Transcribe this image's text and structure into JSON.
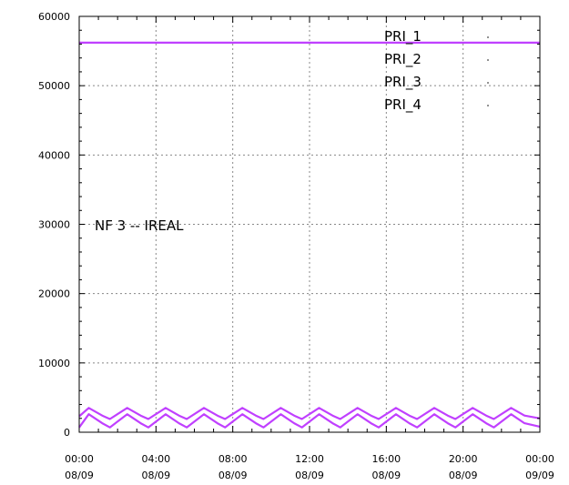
{
  "chart_data": {
    "type": "line",
    "title": "",
    "xlabel": "",
    "ylabel": "",
    "ylim": [
      0,
      60000
    ],
    "yticks": [
      0,
      10000,
      20000,
      30000,
      40000,
      50000,
      60000
    ],
    "ytick_labels": [
      "0",
      "10000",
      "20000",
      "30000",
      "40000",
      "50000",
      "60000"
    ],
    "xlim_hours": [
      0,
      24
    ],
    "xticks_hours": [
      0,
      4,
      8,
      12,
      16,
      20,
      24
    ],
    "xtick_labels": [
      {
        "time": "00:00",
        "date": "08/09"
      },
      {
        "time": "04:00",
        "date": "08/09"
      },
      {
        "time": "08:00",
        "date": "08/09"
      },
      {
        "time": "12:00",
        "date": "08/09"
      },
      {
        "time": "16:00",
        "date": "08/09"
      },
      {
        "time": "20:00",
        "date": "08/09"
      },
      {
        "time": "00:00",
        "date": "09/09"
      }
    ],
    "grid": true,
    "legend_position": "top-right",
    "annotation": "NF 3 -- IREAL",
    "series": [
      {
        "name": "PRI_1",
        "color": "#c040ff",
        "values": [
          {
            "x": 0,
            "y": 56200
          },
          {
            "x": 13.1,
            "y": 56200
          },
          {
            "x": 13.3,
            "y": 56200
          },
          {
            "x": 24,
            "y": 56200
          }
        ]
      },
      {
        "name": "PRI_2",
        "color": "#c040ff",
        "values": [
          {
            "x": 0.0,
            "y": 2300
          },
          {
            "x": 0.5,
            "y": 3500
          },
          {
            "x": 1.2,
            "y": 2400
          },
          {
            "x": 1.6,
            "y": 1900
          },
          {
            "x": 2.5,
            "y": 3500
          },
          {
            "x": 3.2,
            "y": 2400
          },
          {
            "x": 3.6,
            "y": 1900
          },
          {
            "x": 4.5,
            "y": 3500
          },
          {
            "x": 5.2,
            "y": 2400
          },
          {
            "x": 5.6,
            "y": 1900
          },
          {
            "x": 6.5,
            "y": 3500
          },
          {
            "x": 7.2,
            "y": 2400
          },
          {
            "x": 7.6,
            "y": 1900
          },
          {
            "x": 8.5,
            "y": 3500
          },
          {
            "x": 9.2,
            "y": 2400
          },
          {
            "x": 9.6,
            "y": 1900
          },
          {
            "x": 10.5,
            "y": 3500
          },
          {
            "x": 11.2,
            "y": 2400
          },
          {
            "x": 11.6,
            "y": 1900
          },
          {
            "x": 12.5,
            "y": 3500
          },
          {
            "x": 13.2,
            "y": 2400
          },
          {
            "x": 13.6,
            "y": 1900
          },
          {
            "x": 14.5,
            "y": 3500
          },
          {
            "x": 15.2,
            "y": 2400
          },
          {
            "x": 15.6,
            "y": 1900
          },
          {
            "x": 16.5,
            "y": 3500
          },
          {
            "x": 17.2,
            "y": 2400
          },
          {
            "x": 17.6,
            "y": 1900
          },
          {
            "x": 18.5,
            "y": 3500
          },
          {
            "x": 19.2,
            "y": 2400
          },
          {
            "x": 19.6,
            "y": 1900
          },
          {
            "x": 20.5,
            "y": 3500
          },
          {
            "x": 21.2,
            "y": 2400
          },
          {
            "x": 21.6,
            "y": 1900
          },
          {
            "x": 22.5,
            "y": 3500
          },
          {
            "x": 23.2,
            "y": 2400
          },
          {
            "x": 24.0,
            "y": 2000
          }
        ]
      },
      {
        "name": "PRI_3",
        "color": "#c040ff",
        "values": [
          {
            "x": 0.0,
            "y": 700
          },
          {
            "x": 0.5,
            "y": 2600
          },
          {
            "x": 1.2,
            "y": 1300
          },
          {
            "x": 1.6,
            "y": 700
          },
          {
            "x": 2.5,
            "y": 2600
          },
          {
            "x": 3.2,
            "y": 1300
          },
          {
            "x": 3.6,
            "y": 700
          },
          {
            "x": 4.5,
            "y": 2600
          },
          {
            "x": 5.2,
            "y": 1300
          },
          {
            "x": 5.6,
            "y": 700
          },
          {
            "x": 6.5,
            "y": 2600
          },
          {
            "x": 7.2,
            "y": 1300
          },
          {
            "x": 7.6,
            "y": 700
          },
          {
            "x": 8.5,
            "y": 2600
          },
          {
            "x": 9.2,
            "y": 1300
          },
          {
            "x": 9.6,
            "y": 700
          },
          {
            "x": 10.5,
            "y": 2600
          },
          {
            "x": 11.2,
            "y": 1300
          },
          {
            "x": 11.6,
            "y": 700
          },
          {
            "x": 12.5,
            "y": 2600
          },
          {
            "x": 13.2,
            "y": 1300
          },
          {
            "x": 13.6,
            "y": 700
          },
          {
            "x": 14.5,
            "y": 2600
          },
          {
            "x": 15.2,
            "y": 1300
          },
          {
            "x": 15.6,
            "y": 700
          },
          {
            "x": 16.5,
            "y": 2600
          },
          {
            "x": 17.2,
            "y": 1300
          },
          {
            "x": 17.6,
            "y": 700
          },
          {
            "x": 18.5,
            "y": 2600
          },
          {
            "x": 19.2,
            "y": 1300
          },
          {
            "x": 19.6,
            "y": 700
          },
          {
            "x": 20.5,
            "y": 2600
          },
          {
            "x": 21.2,
            "y": 1300
          },
          {
            "x": 21.6,
            "y": 700
          },
          {
            "x": 22.5,
            "y": 2600
          },
          {
            "x": 23.2,
            "y": 1300
          },
          {
            "x": 24.0,
            "y": 800
          }
        ]
      },
      {
        "name": "PRI_4",
        "color": "#c040ff",
        "values": []
      }
    ]
  }
}
